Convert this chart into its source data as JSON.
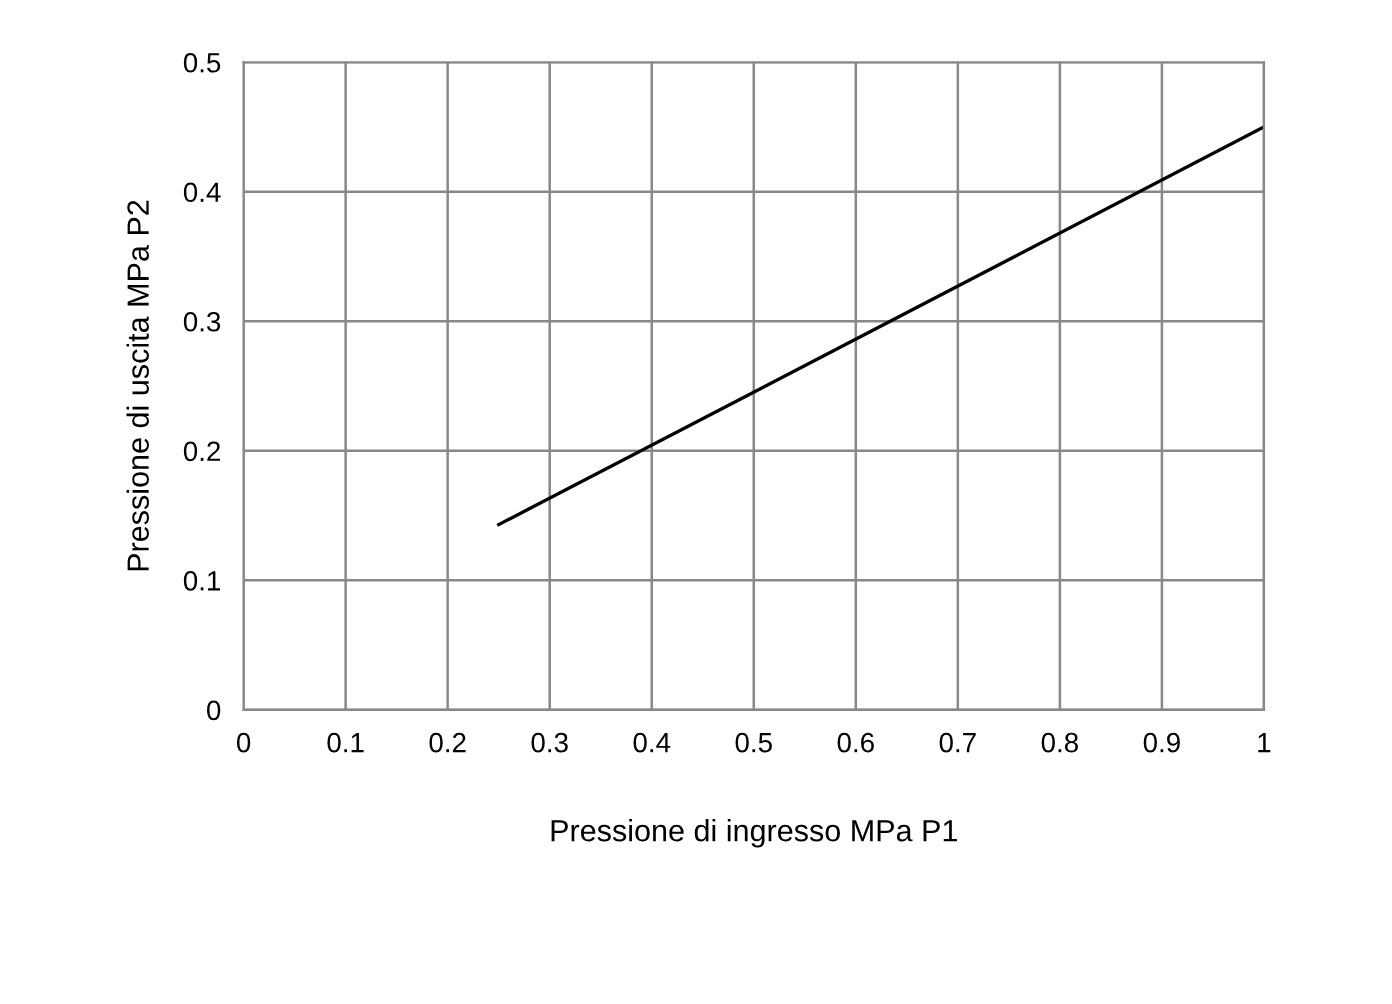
{
  "chart_data": {
    "type": "line",
    "xlabel": "Pressione di ingresso MPa P1",
    "ylabel": "Pressione di uscita MPa P2",
    "x": [
      0.25,
      1
    ],
    "series": [
      {
        "color": "#000000",
        "values": [
          0.143,
          0.45
        ]
      }
    ],
    "xlim": [
      0,
      1
    ],
    "xticks": [
      0,
      0.1,
      0.2,
      0.3,
      0.4,
      0.5,
      0.6,
      0.7,
      0.8,
      0.9,
      1
    ],
    "ylim": [
      0,
      0.5
    ],
    "yticks": [
      0,
      0.1,
      0.2,
      0.3,
      0.4,
      0.5
    ],
    "grid": true,
    "legend": false,
    "marker": "none",
    "line_style": "solid"
  }
}
